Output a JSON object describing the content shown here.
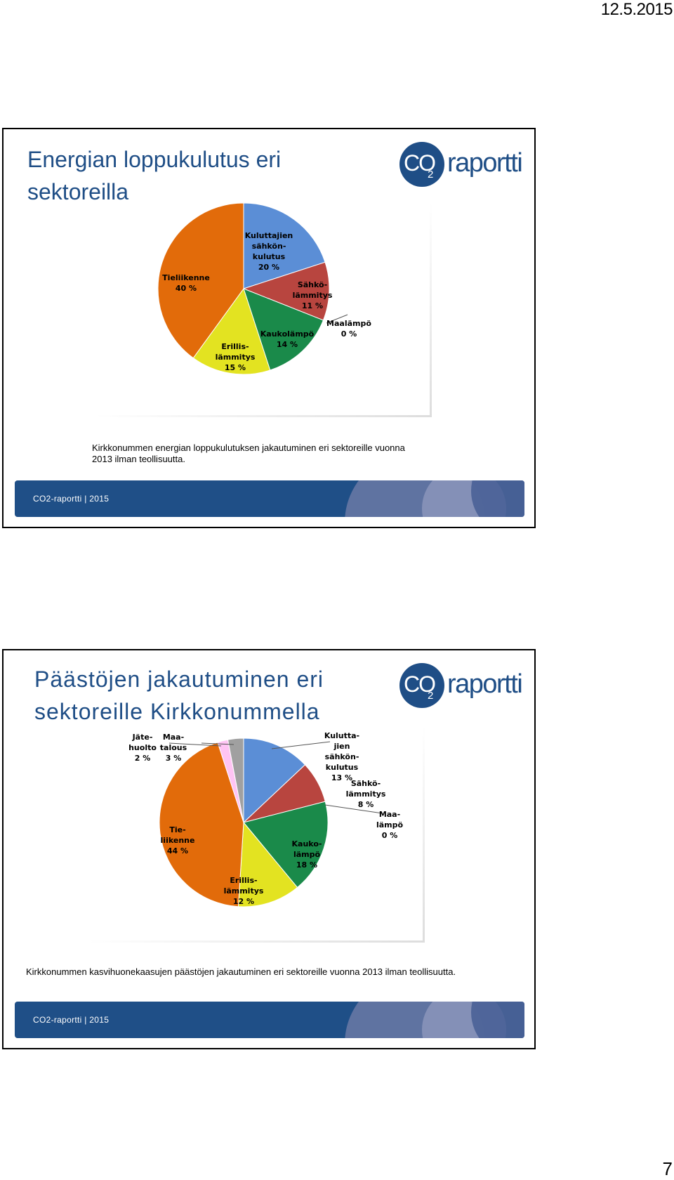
{
  "page": {
    "date": "12.5.2015",
    "number": "7"
  },
  "colors": {
    "brand_blue": "#1f4e86",
    "slice_blue": "#5b8ed6",
    "slice_red": "#b8453f",
    "slice_green": "#1a8a4a",
    "slice_yellow": "#e3e321",
    "slice_orange": "#e26b0a",
    "slice_pink": "#ffc4f4",
    "slice_gray": "#a0a0a0"
  },
  "logo": {
    "co": "CO",
    "sub": "2",
    "word": "raportti"
  },
  "slides": [
    {
      "title": "Energian loppukulutus eri sektoreilla",
      "caption": "Kirkkonummen energian loppukulutuksen jakautuminen eri sektoreille vuonna 2013 ilman teollisuutta.",
      "footer": "CO2-raportti | 2015"
    },
    {
      "title": "Päästöjen jakautuminen eri sektoreille Kirkkonummella",
      "caption": "Kirkkonummen kasvihuonekaasujen päästöjen jakautuminen eri sektoreille vuonna 2013 ilman teollisuutta.",
      "footer": "CO2-raportti | 2015"
    }
  ],
  "chart_data": [
    {
      "type": "pie",
      "title": "",
      "slices": [
        {
          "label": "Kuluttajien sähkönkulutus",
          "value": 20,
          "value_label": "20 %",
          "color": "#5b8ed6",
          "label_lines": [
            "Kuluttajien",
            "sähkön-",
            "kulutus"
          ]
        },
        {
          "label": "Sähkölämmitys",
          "value": 11,
          "value_label": "11 %",
          "color": "#b8453f",
          "label_lines": [
            "Sähkö-",
            "lämmitys"
          ]
        },
        {
          "label": "Maalämpö",
          "value": 0,
          "value_label": "0 %",
          "color": "#3c6e2c",
          "label_lines": [
            "Maalämpö"
          ]
        },
        {
          "label": "Kaukolämpö",
          "value": 14,
          "value_label": "14 %",
          "color": "#1a8a4a",
          "label_lines": [
            "Kaukolämpö"
          ]
        },
        {
          "label": "Erillislämmitys",
          "value": 15,
          "value_label": "15 %",
          "color": "#e3e321",
          "label_lines": [
            "Erillis-",
            "lämmitys"
          ]
        },
        {
          "label": "Tieliikenne",
          "value": 40,
          "value_label": "40 %",
          "color": "#e26b0a",
          "label_lines": [
            "Tieliikenne"
          ]
        }
      ]
    },
    {
      "type": "pie",
      "title": "",
      "slices": [
        {
          "label": "Kuluttajien sähkönkulutus",
          "value": 13,
          "value_label": "13 %",
          "color": "#5b8ed6",
          "label_lines": [
            "Kulutta-",
            "jien",
            "sähkön-",
            "kulutus"
          ]
        },
        {
          "label": "Sähkölämmitys",
          "value": 8,
          "value_label": "8 %",
          "color": "#b8453f",
          "label_lines": [
            "Sähkö-",
            "lämmitys"
          ]
        },
        {
          "label": "Maalämpö",
          "value": 0,
          "value_label": "0 %",
          "color": "#3c6e2c",
          "label_lines": [
            "Maa-",
            "lämpö"
          ]
        },
        {
          "label": "Kaukolämpö",
          "value": 18,
          "value_label": "18 %",
          "color": "#1a8a4a",
          "label_lines": [
            "Kauko-",
            "lämpö"
          ]
        },
        {
          "label": "Erillislämmitys",
          "value": 12,
          "value_label": "12 %",
          "color": "#e3e321",
          "label_lines": [
            "Erillis-",
            "lämmitys"
          ]
        },
        {
          "label": "Tieliikenne",
          "value": 44,
          "value_label": "44 %",
          "color": "#e26b0a",
          "label_lines": [
            "Tie-",
            "liikenne"
          ]
        },
        {
          "label": "Jätehuolto",
          "value": 2,
          "value_label": "2 %",
          "color": "#ffc4f4",
          "label_lines": [
            "Jäte-",
            "huolto"
          ]
        },
        {
          "label": "Maatalous",
          "value": 3,
          "value_label": "3 %",
          "color": "#a0a0a0",
          "label_lines": [
            "Maa-",
            "talous"
          ]
        }
      ]
    }
  ]
}
